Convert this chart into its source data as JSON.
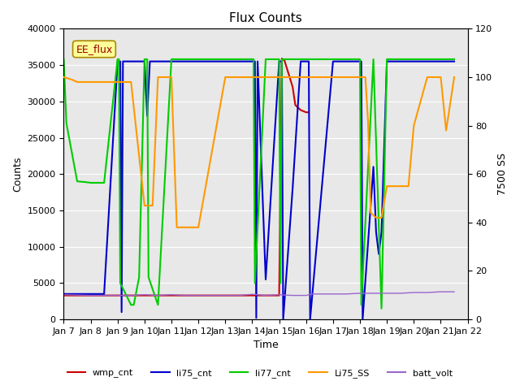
{
  "title": "Flux Counts",
  "xlabel": "Time",
  "ylabel_left": "Counts",
  "ylabel_right": "7500 SS",
  "annotation": "EE_flux",
  "ylim_left": [
    0,
    40000
  ],
  "ylim_right": [
    0,
    120
  ],
  "bg_color": "#e8e8e8",
  "fig_color": "#ffffff",
  "series": {
    "wmp_cnt": {
      "color": "#cc0000",
      "lw": 1.5,
      "axis": "left",
      "x": [
        7,
        7.1,
        8,
        9,
        9.1,
        9.5,
        10,
        10.5,
        11,
        15,
        15.1,
        15.2,
        15.5,
        15.6,
        15.8,
        16,
        16.1
      ],
      "y": [
        3300,
        3300,
        3300,
        3300,
        3300,
        3300,
        3300,
        3300,
        3300,
        3300,
        35900,
        35600,
        32000,
        29500,
        28800,
        28500,
        28500
      ]
    },
    "li75_cnt": {
      "color": "#0000cc",
      "lw": 1.5,
      "axis": "left",
      "x": [
        7,
        7.5,
        8,
        8.5,
        9,
        9.1,
        9.15,
        9.2,
        9.5,
        10,
        10.1,
        10.2,
        10.5,
        10.7,
        11,
        11.5,
        12,
        13,
        13.5,
        14,
        14.1,
        14.15,
        14.2,
        14.5,
        15,
        15.1,
        15.15,
        15.5,
        15.8,
        16,
        16.1,
        16.15,
        17,
        17.5,
        18,
        18.05,
        18.1,
        18.5,
        18.6,
        18.7,
        18.8,
        19,
        19.1,
        19.5,
        19.6,
        20,
        20.5,
        21,
        21.5
      ],
      "y": [
        3500,
        3500,
        3500,
        3500,
        35500,
        35500,
        1000,
        35500,
        35500,
        35500,
        28000,
        35500,
        35500,
        35500,
        35500,
        35500,
        35500,
        35500,
        35500,
        35500,
        35500,
        200,
        35500,
        5500,
        35500,
        35500,
        0,
        18000,
        35500,
        35500,
        35500,
        0,
        35500,
        35500,
        35500,
        35500,
        0,
        21000,
        12000,
        9000,
        12000,
        35500,
        35500,
        35500,
        35500,
        35500,
        35500,
        35500,
        35500
      ]
    },
    "li77_cnt": {
      "color": "#00cc00",
      "lw": 1.5,
      "axis": "left",
      "x": [
        7,
        7.1,
        7.5,
        7.8,
        8,
        8.5,
        9,
        9.05,
        9.1,
        9.5,
        9.6,
        9.8,
        10,
        10.1,
        10.15,
        10.5,
        11,
        11.1,
        11.5,
        12,
        12.5,
        13,
        13.5,
        14,
        14.05,
        14.1,
        14.5,
        15,
        15.05,
        15.1,
        15.5,
        15.8,
        16,
        16.1,
        16.5,
        17,
        17.5,
        18,
        18.05,
        18.5,
        18.8,
        19,
        19.1,
        19.5,
        20,
        20.5,
        21,
        21.5
      ],
      "y": [
        35800,
        27000,
        19000,
        18900,
        18800,
        18800,
        35800,
        35800,
        5000,
        2000,
        2000,
        5800,
        35800,
        35800,
        5800,
        2000,
        35800,
        35800,
        35800,
        35800,
        35800,
        35800,
        35800,
        35800,
        35800,
        5000,
        35800,
        35800,
        5000,
        35800,
        35800,
        35800,
        35800,
        35800,
        35800,
        35800,
        35800,
        35800,
        2000,
        35800,
        1500,
        35800,
        35800,
        35800,
        35800,
        35800,
        35800,
        35800
      ]
    },
    "Li75_SS": {
      "color": "#ff9900",
      "lw": 1.5,
      "axis": "right",
      "x": [
        7,
        7.3,
        7.5,
        8,
        8.5,
        9,
        9.5,
        10,
        10.1,
        10.3,
        10.5,
        11,
        11.2,
        12,
        13,
        13.5,
        13.8,
        14,
        14.5,
        15,
        15.5,
        16,
        16.5,
        17,
        17.5,
        18,
        18.1,
        18.2,
        18.3,
        18.4,
        18.5,
        18.6,
        18.7,
        18.8,
        19,
        19.1,
        19.5,
        19.8,
        20,
        20.5,
        21,
        21.2,
        21.5
      ],
      "y": [
        100,
        99,
        98,
        98,
        98,
        98,
        98,
        47,
        47,
        47,
        100,
        100,
        38,
        38,
        100,
        100,
        100,
        100,
        100,
        100,
        100,
        100,
        100,
        100,
        100,
        100,
        100,
        100,
        82,
        44,
        43,
        42,
        42,
        42,
        55,
        55,
        55,
        55,
        80,
        100,
        100,
        78,
        100
      ]
    },
    "batt_volt": {
      "color": "#9966cc",
      "lw": 1.0,
      "axis": "left",
      "x": [
        7,
        7.5,
        8,
        8.5,
        9,
        9.5,
        10,
        10.5,
        11,
        11.5,
        12,
        12.5,
        13,
        13.5,
        14,
        14.5,
        15,
        15.5,
        16,
        16.2,
        16.5,
        17,
        17.5,
        18,
        18.5,
        19,
        19.5,
        20,
        20.5,
        21,
        21.5
      ],
      "y": [
        3400,
        3350,
        3300,
        3300,
        3300,
        3300,
        3400,
        3300,
        3400,
        3300,
        3300,
        3300,
        3300,
        3300,
        3450,
        3300,
        3400,
        3300,
        3300,
        3500,
        3500,
        3500,
        3500,
        3600,
        3600,
        3600,
        3600,
        3700,
        3700,
        3800,
        3800
      ]
    }
  },
  "xticks": [
    7,
    8,
    9,
    10,
    11,
    12,
    13,
    14,
    15,
    16,
    17,
    18,
    19,
    20,
    21,
    22
  ],
  "xtick_labels": [
    "Jan 7",
    "Jan 8",
    "Jan 9",
    "Jan 10",
    "Jan 11",
    "Jan 12",
    "Jan 13",
    "Jan 14",
    "Jan 15",
    "Jan 16",
    "Jan 17",
    "Jan 18",
    "Jan 19",
    "Jan 20",
    "Jan 21",
    "Jan 22"
  ],
  "yticks_left": [
    0,
    5000,
    10000,
    15000,
    20000,
    25000,
    30000,
    35000,
    40000
  ],
  "yticks_right": [
    0,
    20,
    40,
    60,
    80,
    100,
    120
  ],
  "legend_entries": [
    {
      "label": "wmp_cnt",
      "color": "#cc0000"
    },
    {
      "label": "li75_cnt",
      "color": "#0000cc"
    },
    {
      "label": "li77_cnt",
      "color": "#00cc00"
    },
    {
      "label": "Li75_SS",
      "color": "#ff9900"
    },
    {
      "label": "batt_volt",
      "color": "#9966cc"
    }
  ]
}
